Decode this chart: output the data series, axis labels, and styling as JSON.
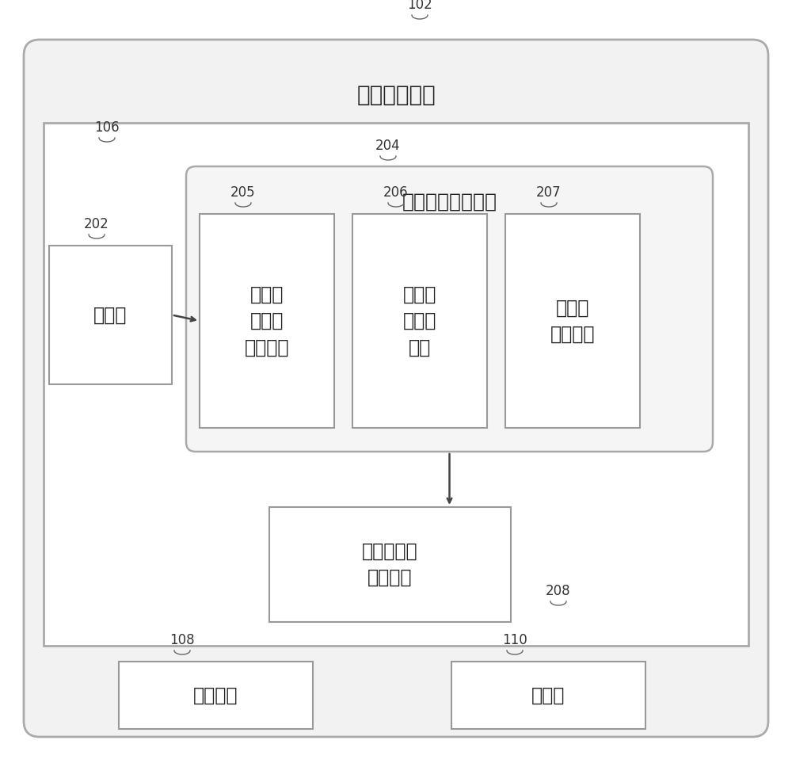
{
  "title": "活动识别系统",
  "label_102": "102",
  "label_106": "106",
  "label_202": "202",
  "label_204": "204",
  "label_205": "205",
  "label_206": "206",
  "label_207": "207",
  "label_208": "208",
  "label_108": "108",
  "label_110": "110",
  "text_classifier": "分类器",
  "text_qsgm": "量化签名生成模块",
  "text_205": "数据过\n滤和二\n值化模块",
  "text_206": "静默间\n隔检测\n模块",
  "text_207": "压缩词\n合成模块",
  "text_208": "依赖于序列\n的分类器",
  "text_108": "操作面板",
  "text_110": "存储器",
  "bg_color": "#ffffff",
  "box_color": "#ffffff",
  "outer_bg": "#f0f0f0",
  "inner_bg": "#f8f8f8",
  "border_color": "#999999",
  "text_color": "#222222",
  "label_color": "#333333",
  "title_fontsize": 20,
  "label_fontsize": 12,
  "qsgm_fontsize": 18,
  "inner_fontsize": 17,
  "small_fontsize": 14
}
